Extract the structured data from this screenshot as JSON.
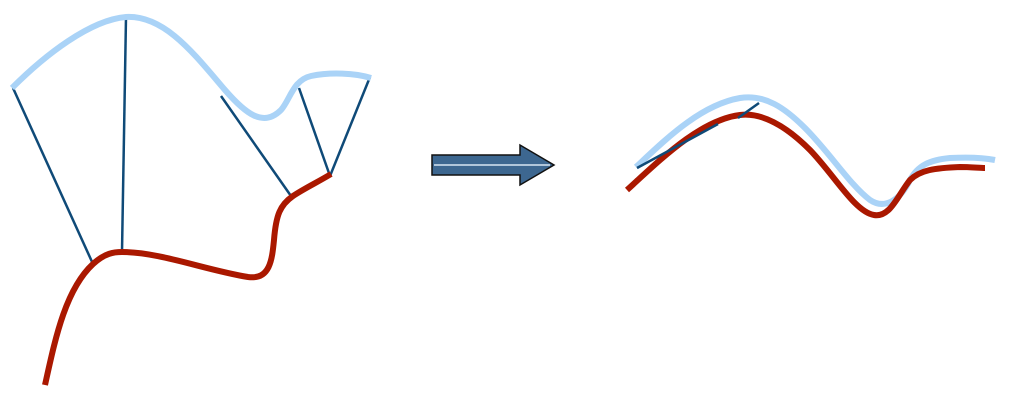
{
  "colors": {
    "background": "#ffffff",
    "source_curve": "#aad3f7",
    "target_curve": "#aa1800",
    "correspondence_line": "#0f4a78",
    "arrow_fill": "#3d6790",
    "arrow_highlight": "#d8e6f3",
    "arrow_outline": "#111111"
  },
  "icons": {
    "transform_arrow": "right-block-arrow-icon"
  }
}
